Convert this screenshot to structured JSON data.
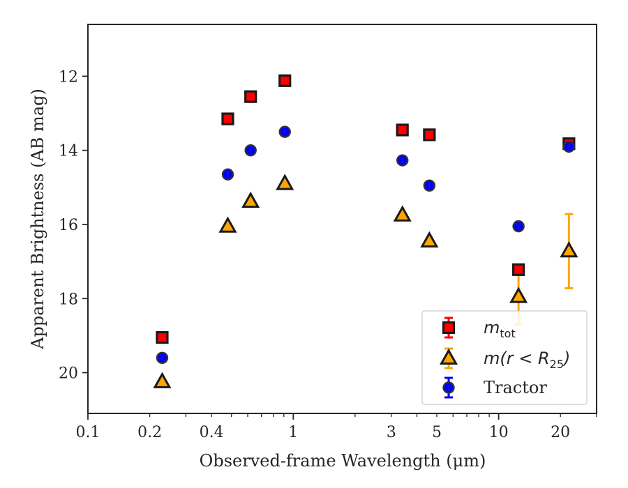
{
  "chart_data": {
    "type": "scatter",
    "title": "",
    "xlabel": "Observed-frame Wavelength (μm)",
    "ylabel": "Apparent Brightness (AB mag)",
    "xscale": "log",
    "xlim": [
      0.1,
      30
    ],
    "ylim": [
      21.1,
      10.6
    ],
    "y_inverted": true,
    "xticks": [
      0.1,
      0.2,
      0.4,
      1,
      3,
      5,
      10,
      20
    ],
    "xtick_labels": [
      "0.1",
      "0.2",
      "0.4",
      "1",
      "3",
      "5",
      "10",
      "20"
    ],
    "yticks": [
      12,
      14,
      16,
      18,
      20
    ],
    "ytick_labels": [
      "12",
      "14",
      "16",
      "18",
      "20"
    ],
    "legend_position": "bottom-right",
    "grid": false,
    "series": [
      {
        "name": "m_tot",
        "legend_base": "m",
        "legend_sub": "tot",
        "marker": "square",
        "color": "#ff0000",
        "edge_color": "#1a1a1a",
        "points": [
          {
            "x": 0.23,
            "y": 19.05
          },
          {
            "x": 0.48,
            "y": 13.15
          },
          {
            "x": 0.62,
            "y": 12.55
          },
          {
            "x": 0.91,
            "y": 12.12
          },
          {
            "x": 3.4,
            "y": 13.45
          },
          {
            "x": 4.6,
            "y": 13.58
          },
          {
            "x": 12.5,
            "y": 17.22
          },
          {
            "x": 22.0,
            "y": 13.82
          }
        ]
      },
      {
        "name": "m(r < R25)",
        "legend_base": "m(r < R",
        "legend_sub": "25",
        "legend_tail": ")",
        "marker": "triangle",
        "color": "#ffa500",
        "edge_color": "#1a1a1a",
        "points": [
          {
            "x": 0.23,
            "y": 20.25
          },
          {
            "x": 0.48,
            "y": 16.05
          },
          {
            "x": 0.62,
            "y": 15.38
          },
          {
            "x": 0.91,
            "y": 14.9
          },
          {
            "x": 3.4,
            "y": 15.75
          },
          {
            "x": 4.6,
            "y": 16.45
          },
          {
            "x": 12.5,
            "y": 17.95,
            "err": 0.75
          },
          {
            "x": 22.0,
            "y": 16.72,
            "err": 1.0
          }
        ]
      },
      {
        "name": "Tractor",
        "marker": "circle",
        "color": "#0000ff",
        "edge_color": "#333333",
        "points": [
          {
            "x": 0.23,
            "y": 19.6
          },
          {
            "x": 0.48,
            "y": 14.65
          },
          {
            "x": 0.62,
            "y": 14.0
          },
          {
            "x": 0.91,
            "y": 13.5
          },
          {
            "x": 3.4,
            "y": 14.27
          },
          {
            "x": 4.6,
            "y": 14.95
          },
          {
            "x": 12.5,
            "y": 16.05
          },
          {
            "x": 22.0,
            "y": 13.9
          }
        ]
      }
    ]
  }
}
